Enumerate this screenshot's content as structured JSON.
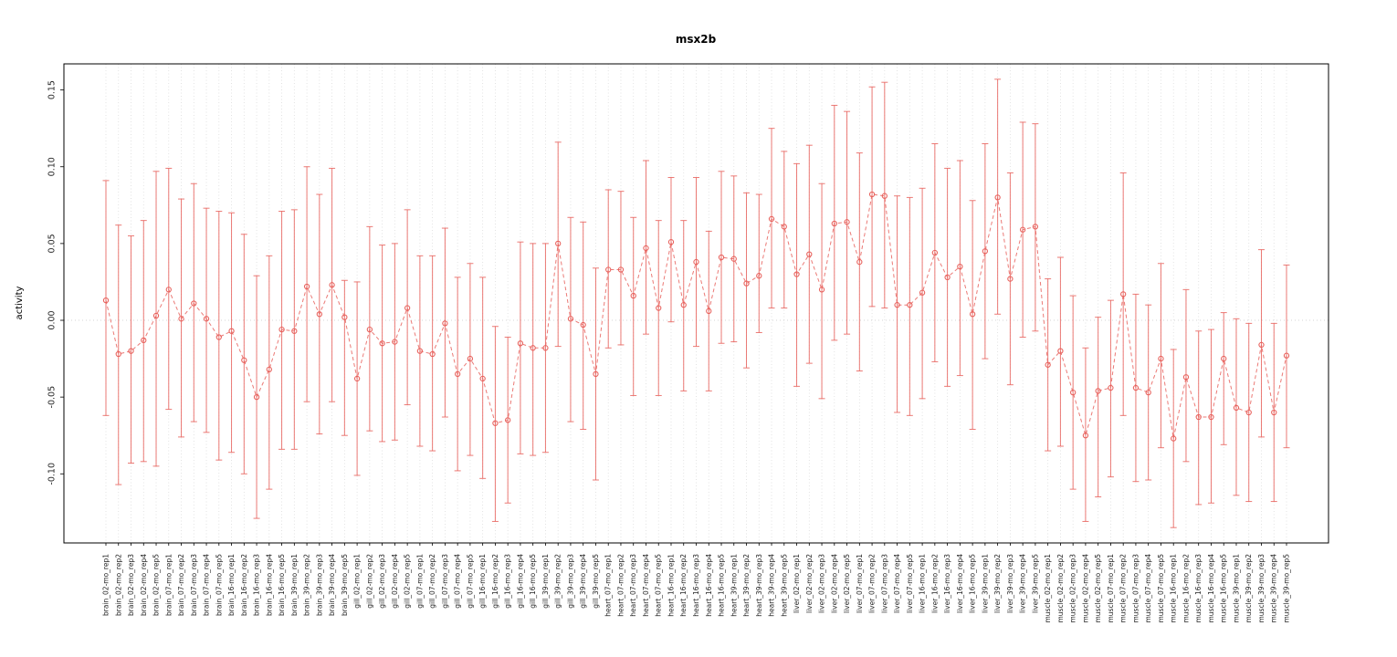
{
  "chart_data": {
    "type": "line",
    "title": "msx2b",
    "ylabel": "activity",
    "xlabel": "",
    "ylim": [
      -0.145,
      0.167
    ],
    "yticks": [
      -0.1,
      -0.05,
      0.0,
      0.05,
      0.1,
      0.15
    ],
    "ytick_labels": [
      "-0.10",
      "-0.05",
      "0.00",
      "0.05",
      "0.10",
      "0.15"
    ],
    "grid": {
      "vertical_per_category": true,
      "zero_line": true
    },
    "legend_position": "none",
    "series_color": "#e8635e",
    "point_style": "open-circle",
    "line_style": "dashed",
    "error_bars": true,
    "categories": [
      "brain_02-mo_rep1",
      "brain_02-mo_rep2",
      "brain_02-mo_rep3",
      "brain_02-mo_rep4",
      "brain_02-mo_rep5",
      "brain_07-mo_rep1",
      "brain_07-mo_rep2",
      "brain_07-mo_rep3",
      "brain_07-mo_rep4",
      "brain_07-mo_rep5",
      "brain_16-mo_rep1",
      "brain_16-mo_rep2",
      "brain_16-mo_rep3",
      "brain_16-mo_rep4",
      "brain_16-mo_rep5",
      "brain_39-mo_rep1",
      "brain_39-mo_rep2",
      "brain_39-mo_rep3",
      "brain_39-mo_rep4",
      "brain_39-mo_rep5",
      "gill_02-mo_rep1",
      "gill_02-mo_rep2",
      "gill_02-mo_rep3",
      "gill_02-mo_rep4",
      "gill_02-mo_rep5",
      "gill_07-mo_rep1",
      "gill_07-mo_rep2",
      "gill_07-mo_rep3",
      "gill_07-mo_rep4",
      "gill_07-mo_rep5",
      "gill_16-mo_rep1",
      "gill_16-mo_rep2",
      "gill_16-mo_rep3",
      "gill_16-mo_rep4",
      "gill_16-mo_rep5",
      "gill_39-mo_rep1",
      "gill_39-mo_rep2",
      "gill_39-mo_rep3",
      "gill_39-mo_rep4",
      "gill_39-mo_rep5",
      "heart_07-mo_rep1",
      "heart_07-mo_rep2",
      "heart_07-mo_rep3",
      "heart_07-mo_rep4",
      "heart_07-mo_rep5",
      "heart_16-mo_rep1",
      "heart_16-mo_rep2",
      "heart_16-mo_rep3",
      "heart_16-mo_rep4",
      "heart_16-mo_rep5",
      "heart_39-mo_rep1",
      "heart_39-mo_rep2",
      "heart_39-mo_rep3",
      "heart_39-mo_rep4",
      "heart_39-mo_rep5",
      "liver_02-mo_rep1",
      "liver_02-mo_rep2",
      "liver_02-mo_rep3",
      "liver_02-mo_rep4",
      "liver_02-mo_rep5",
      "liver_07-mo_rep1",
      "liver_07-mo_rep2",
      "liver_07-mo_rep3",
      "liver_07-mo_rep4",
      "liver_07-mo_rep5",
      "liver_16-mo_rep1",
      "liver_16-mo_rep2",
      "liver_16-mo_rep3",
      "liver_16-mo_rep4",
      "liver_16-mo_rep5",
      "liver_39-mo_rep1",
      "liver_39-mo_rep2",
      "liver_39-mo_rep3",
      "liver_39-mo_rep4",
      "liver_39-mo_rep5",
      "muscle_02-mo_rep1",
      "muscle_02-mo_rep2",
      "muscle_02-mo_rep3",
      "muscle_02-mo_rep4",
      "muscle_02-mo_rep5",
      "muscle_07-mo_rep1",
      "muscle_07-mo_rep2",
      "muscle_07-mo_rep3",
      "muscle_07-mo_rep4",
      "muscle_07-mo_rep5",
      "muscle_16-mo_rep1",
      "muscle_16-mo_rep2",
      "muscle_16-mo_rep3",
      "muscle_16-mo_rep4",
      "muscle_16-mo_rep5",
      "muscle_39-mo_rep1",
      "muscle_39-mo_rep2",
      "muscle_39-mo_rep3",
      "muscle_39-mo_rep4",
      "muscle_39-mo_rep5"
    ],
    "values": [
      0.013,
      -0.022,
      -0.02,
      -0.013,
      0.003,
      0.02,
      0.001,
      0.011,
      0.001,
      -0.011,
      -0.007,
      -0.026,
      -0.05,
      -0.032,
      -0.006,
      -0.007,
      0.022,
      0.004,
      0.023,
      0.002,
      -0.038,
      -0.006,
      -0.015,
      -0.014,
      0.008,
      -0.02,
      -0.022,
      -0.002,
      -0.035,
      -0.025,
      -0.038,
      -0.067,
      -0.065,
      -0.015,
      -0.018,
      -0.018,
      0.05,
      0.001,
      -0.003,
      -0.035,
      0.033,
      0.033,
      0.016,
      0.047,
      0.008,
      0.051,
      0.01,
      0.038,
      0.006,
      0.041,
      0.04,
      0.024,
      0.029,
      0.066,
      0.061,
      0.03,
      0.043,
      0.02,
      0.063,
      0.064,
      0.038,
      0.082,
      0.081,
      0.01,
      0.01,
      0.018,
      0.044,
      0.028,
      0.035,
      0.004,
      0.045,
      0.08,
      0.027,
      0.059,
      0.061,
      -0.029,
      -0.02,
      -0.047,
      -0.075,
      -0.046,
      -0.044,
      0.017,
      -0.044,
      -0.047,
      -0.025,
      -0.077,
      -0.037,
      -0.063,
      -0.063,
      -0.025,
      -0.057,
      -0.06,
      -0.016,
      -0.06,
      -0.023
    ],
    "lower": [
      -0.062,
      -0.107,
      -0.093,
      -0.092,
      -0.095,
      -0.058,
      -0.076,
      -0.066,
      -0.073,
      -0.091,
      -0.086,
      -0.1,
      -0.129,
      -0.11,
      -0.084,
      -0.084,
      -0.053,
      -0.074,
      -0.053,
      -0.075,
      -0.101,
      -0.072,
      -0.079,
      -0.078,
      -0.055,
      -0.082,
      -0.085,
      -0.063,
      -0.098,
      -0.088,
      -0.103,
      -0.131,
      -0.119,
      -0.087,
      -0.088,
      -0.086,
      -0.017,
      -0.066,
      -0.071,
      -0.104,
      -0.018,
      -0.016,
      -0.049,
      -0.009,
      -0.049,
      -0.001,
      -0.046,
      -0.017,
      -0.046,
      -0.015,
      -0.014,
      -0.031,
      -0.008,
      0.008,
      0.008,
      -0.043,
      -0.028,
      -0.051,
      -0.013,
      -0.009,
      -0.033,
      0.009,
      0.008,
      -0.06,
      -0.062,
      -0.051,
      -0.027,
      -0.043,
      -0.036,
      -0.071,
      -0.025,
      0.004,
      -0.042,
      -0.011,
      -0.007,
      -0.085,
      -0.082,
      -0.11,
      -0.131,
      -0.115,
      -0.102,
      -0.062,
      -0.105,
      -0.104,
      -0.083,
      -0.135,
      -0.092,
      -0.12,
      -0.119,
      -0.081,
      -0.114,
      -0.118,
      -0.076,
      -0.118,
      -0.083
    ],
    "upper": [
      0.091,
      0.062,
      0.055,
      0.065,
      0.097,
      0.099,
      0.079,
      0.089,
      0.073,
      0.071,
      0.07,
      0.056,
      0.029,
      0.042,
      0.071,
      0.072,
      0.1,
      0.082,
      0.099,
      0.026,
      0.025,
      0.061,
      0.049,
      0.05,
      0.072,
      0.042,
      0.042,
      0.06,
      0.028,
      0.037,
      0.028,
      -0.004,
      -0.011,
      0.051,
      0.05,
      0.05,
      0.116,
      0.067,
      0.064,
      0.034,
      0.085,
      0.084,
      0.067,
      0.104,
      0.065,
      0.093,
      0.065,
      0.093,
      0.058,
      0.097,
      0.094,
      0.083,
      0.082,
      0.125,
      0.11,
      0.102,
      0.114,
      0.089,
      0.14,
      0.136,
      0.109,
      0.152,
      0.155,
      0.081,
      0.08,
      0.086,
      0.115,
      0.099,
      0.104,
      0.078,
      0.115,
      0.157,
      0.096,
      0.129,
      0.128,
      0.027,
      0.041,
      0.016,
      -0.018,
      0.002,
      0.013,
      0.096,
      0.017,
      0.01,
      0.037,
      -0.019,
      0.02,
      -0.007,
      -0.006,
      0.005,
      0.001,
      -0.002,
      0.046,
      -0.002,
      0.036
    ]
  }
}
